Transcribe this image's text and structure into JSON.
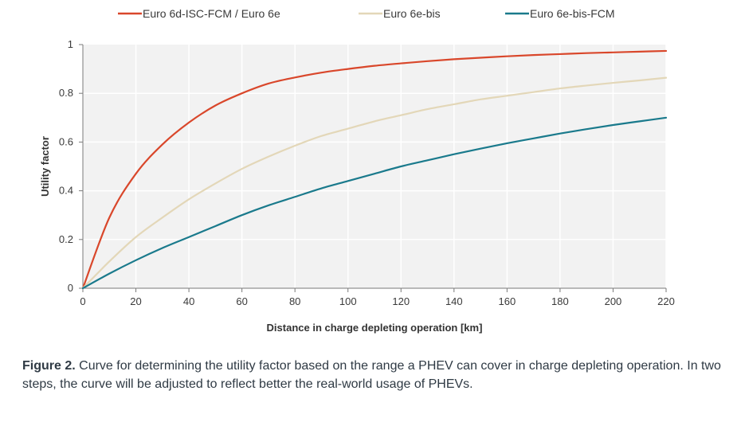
{
  "chart_data": {
    "type": "line",
    "title": "",
    "xlabel": "Distance in charge depleting operation [km]",
    "ylabel": "Utility factor",
    "xlim": [
      0,
      220
    ],
    "ylim": [
      0,
      1
    ],
    "xticks": [
      0,
      20,
      40,
      60,
      80,
      100,
      120,
      140,
      160,
      180,
      200,
      220
    ],
    "yticks": [
      0,
      0.2,
      0.4,
      0.6,
      0.8,
      1
    ],
    "ytick_labels": [
      "0",
      "0.2",
      "0.4",
      "0.6",
      "0.8",
      "1"
    ],
    "grid": true,
    "legend_position": "top",
    "x": [
      0,
      10,
      20,
      30,
      40,
      50,
      60,
      70,
      80,
      90,
      100,
      110,
      120,
      130,
      140,
      150,
      160,
      170,
      180,
      190,
      200,
      210,
      220
    ],
    "series": [
      {
        "name": "Euro 6d-ISC-FCM / Euro 6e",
        "color": "#d9472b",
        "values": [
          0,
          0.29,
          0.47,
          0.59,
          0.68,
          0.75,
          0.8,
          0.84,
          0.865,
          0.885,
          0.9,
          0.913,
          0.923,
          0.932,
          0.94,
          0.946,
          0.952,
          0.957,
          0.961,
          0.965,
          0.968,
          0.971,
          0.974
        ]
      },
      {
        "name": "Euro 6e-bis",
        "color": "#e3d7b8",
        "values": [
          0,
          0.11,
          0.21,
          0.29,
          0.365,
          0.43,
          0.49,
          0.54,
          0.585,
          0.625,
          0.655,
          0.685,
          0.71,
          0.735,
          0.755,
          0.775,
          0.79,
          0.805,
          0.82,
          0.832,
          0.843,
          0.853,
          0.864
        ]
      },
      {
        "name": "Euro 6e-bis-FCM",
        "color": "#1a7a8c",
        "values": [
          0,
          0.06,
          0.115,
          0.165,
          0.21,
          0.255,
          0.3,
          0.34,
          0.375,
          0.41,
          0.44,
          0.47,
          0.5,
          0.525,
          0.55,
          0.573,
          0.595,
          0.615,
          0.635,
          0.653,
          0.67,
          0.685,
          0.7
        ]
      }
    ]
  },
  "caption": {
    "label": "Figure 2.",
    "text": " Curve for determining the utility factor based on the range a PHEV can cover in charge depleting operation. In two steps, the curve will be adjusted to reflect better the real-world usage of PHEVs."
  }
}
